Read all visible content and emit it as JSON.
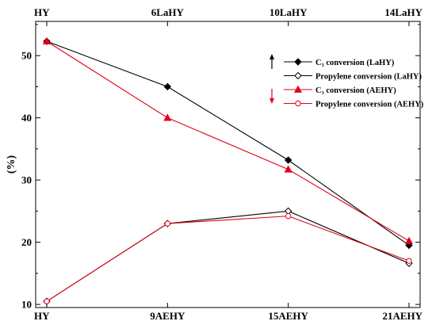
{
  "chart_data": {
    "type": "line",
    "ylabel": "(%)",
    "ylim": [
      9.5,
      55.5
    ],
    "yticks": [
      10,
      20,
      30,
      40,
      50
    ],
    "x_bottom": [
      "HY",
      "9AEHY",
      "15AEHY",
      "21AEHY"
    ],
    "x_top": [
      "HY",
      "6LaHY",
      "10LaHY",
      "14LaHY"
    ],
    "grid": false,
    "legend_position": "top-right",
    "series": [
      {
        "name": "C₃ conversion (LaHY)",
        "color": "#000000",
        "marker": "filled-diamond",
        "axis": "top",
        "values": [
          52.3,
          45.0,
          33.2,
          19.5
        ]
      },
      {
        "name": "Propylene conversion (LaHY)",
        "color": "#000000",
        "marker": "open-diamond",
        "axis": "top",
        "values": [
          10.5,
          23.0,
          25.0,
          16.6
        ]
      },
      {
        "name": "C₃ conversion (AEHY)",
        "color": "#e0001b",
        "marker": "filled-triangle",
        "axis": "bottom",
        "values": [
          52.3,
          40.0,
          31.7,
          20.2
        ]
      },
      {
        "name": "Propylene conversion (AEHY)",
        "color": "#e0001b",
        "marker": "open-circle",
        "axis": "bottom",
        "values": [
          10.5,
          23.0,
          24.2,
          17.0
        ]
      }
    ],
    "arrows": [
      {
        "direction": "up",
        "color": "#000000"
      },
      {
        "direction": "down",
        "color": "#e0001b"
      }
    ]
  }
}
